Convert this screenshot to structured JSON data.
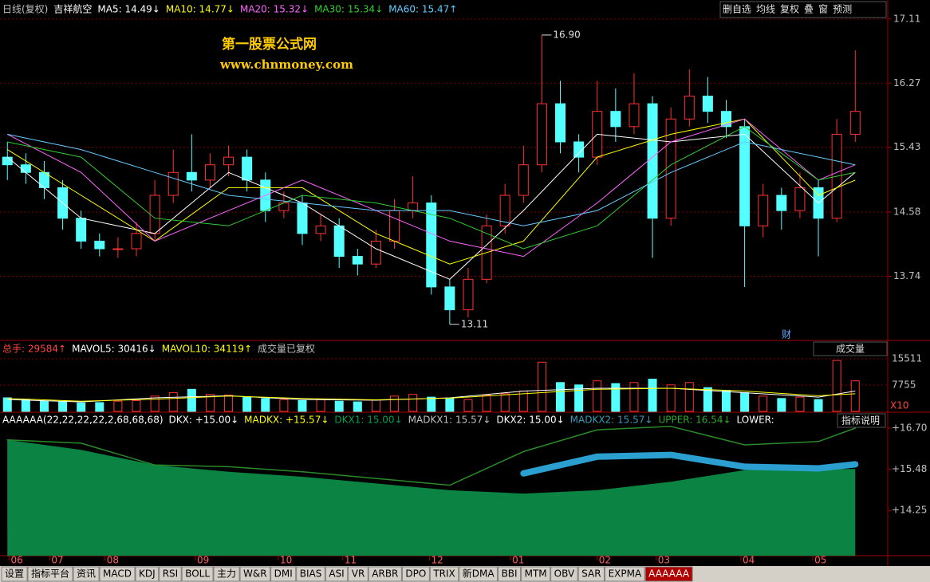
{
  "chart_data": [
    {
      "type": "candlestick",
      "header": [
        {
          "text": "日线(复权)",
          "color": "#c0c0c0"
        },
        {
          "text": "吉祥航空",
          "color": "#ffffff"
        },
        {
          "text": "MA5: 14.49↓",
          "color": "#ffffff"
        },
        {
          "text": "MA10: 14.77↓",
          "color": "#ffff00"
        },
        {
          "text": "MA20: 15.32↓",
          "color": "#ff66ff"
        },
        {
          "text": "MA30: 15.34↓",
          "color": "#33cc33"
        },
        {
          "text": "MA60: 15.47↑",
          "color": "#66ccff"
        }
      ],
      "watermark": [
        "第一股票公式网",
        "www.chnmoney.com"
      ],
      "annotations": [
        "16.90",
        "13.11",
        "财"
      ],
      "up_color": "#ff3232",
      "down_color": "#54ffff",
      "open": [
        15.3,
        15.2,
        15.1,
        14.9,
        14.5,
        14.2,
        14.1,
        14.1,
        14.3,
        14.8,
        15.1,
        15.0,
        15.2,
        15.3,
        15.0,
        14.6,
        14.7,
        14.3,
        14.4,
        14.0,
        13.9,
        14.2,
        14.6,
        14.7,
        13.6,
        13.3,
        13.7,
        14.4,
        14.8,
        15.2,
        16.0,
        15.5,
        15.3,
        15.9,
        15.7,
        16.0,
        14.5,
        15.8,
        16.1,
        15.9,
        15.7,
        14.4,
        14.8,
        14.6,
        14.9,
        14.5,
        15.6
      ],
      "high": [
        15.5,
        15.35,
        15.25,
        15.0,
        14.6,
        14.3,
        14.25,
        14.45,
        15.0,
        15.4,
        15.6,
        15.35,
        15.45,
        15.4,
        15.1,
        14.85,
        14.8,
        14.55,
        14.5,
        14.1,
        14.35,
        14.75,
        15.05,
        14.8,
        13.7,
        13.85,
        14.55,
        14.95,
        15.45,
        16.9,
        16.3,
        15.6,
        16.3,
        16.2,
        16.4,
        16.1,
        15.95,
        16.45,
        16.35,
        16.05,
        15.8,
        14.95,
        14.9,
        15.1,
        15.0,
        15.8,
        16.7
      ],
      "low": [
        15.0,
        14.95,
        14.75,
        14.35,
        14.1,
        14.0,
        13.98,
        14.0,
        14.2,
        14.7,
        14.85,
        14.9,
        15.05,
        14.85,
        14.45,
        14.5,
        14.15,
        14.2,
        13.85,
        13.75,
        13.85,
        14.1,
        14.5,
        13.5,
        13.11,
        13.2,
        13.65,
        14.3,
        14.7,
        15.1,
        15.35,
        15.1,
        15.2,
        15.5,
        15.6,
        13.98,
        14.4,
        15.7,
        15.75,
        15.55,
        13.6,
        14.25,
        14.35,
        14.5,
        14.0,
        14.45,
        15.5
      ],
      "close": [
        15.2,
        15.1,
        14.9,
        14.5,
        14.2,
        14.1,
        14.1,
        14.3,
        14.8,
        15.1,
        15.0,
        15.2,
        15.3,
        15.0,
        14.6,
        14.7,
        14.3,
        14.4,
        14.0,
        13.9,
        14.2,
        14.6,
        14.7,
        13.6,
        13.3,
        13.7,
        14.4,
        14.8,
        15.2,
        16.0,
        15.5,
        15.3,
        15.9,
        15.7,
        16.0,
        14.5,
        15.8,
        16.1,
        15.9,
        15.7,
        14.4,
        14.8,
        14.6,
        14.9,
        14.5,
        15.6,
        15.9
      ],
      "ma": {
        "x": [
          0,
          4,
          8,
          12,
          16,
          20,
          24,
          28,
          32,
          36,
          40,
          44,
          46
        ],
        "series": [
          {
            "color": "#ffffff",
            "values": [
              15.3,
              14.5,
              14.3,
              15.1,
              14.7,
              14.1,
              13.7,
              14.6,
              15.6,
              15.5,
              15.6,
              14.7,
              15.1
            ]
          },
          {
            "color": "#ffff00",
            "values": [
              15.4,
              14.8,
              14.2,
              14.9,
              14.9,
              14.3,
              13.9,
              14.2,
              15.3,
              15.6,
              15.8,
              14.8,
              15.0
            ]
          },
          {
            "color": "#ff66ff",
            "values": [
              15.6,
              15.1,
              14.2,
              14.6,
              15.0,
              14.6,
              14.2,
              14.0,
              14.7,
              15.5,
              15.8,
              15.0,
              15.2
            ]
          },
          {
            "color": "#33cc33",
            "values": [
              15.5,
              15.3,
              14.5,
              14.4,
              14.8,
              14.7,
              14.5,
              14.1,
              14.4,
              15.2,
              15.7,
              15.0,
              15.1
            ]
          },
          {
            "color": "#66ccff",
            "values": [
              15.6,
              15.4,
              15.1,
              14.8,
              14.7,
              14.6,
              14.6,
              14.4,
              14.6,
              15.1,
              15.5,
              15.3,
              15.2
            ]
          }
        ]
      },
      "ylim": [
        12.92,
        17.15
      ],
      "yticks": [
        17.11,
        16.27,
        15.43,
        14.58,
        13.74
      ],
      "xlim": [
        -0.4,
        47.2
      ],
      "xticks": [
        {
          "value": 0.1,
          "label": "06"
        },
        {
          "value": 2.3,
          "label": "07"
        },
        {
          "value": 5.3,
          "label": "08"
        },
        {
          "value": 10.2,
          "label": "09"
        },
        {
          "value": 14.7,
          "label": "10"
        },
        {
          "value": 18.2,
          "label": "11"
        },
        {
          "value": 22.9,
          "label": "12"
        },
        {
          "value": 27.3,
          "label": "01"
        },
        {
          "value": 32.0,
          "label": "02"
        },
        {
          "value": 35.2,
          "label": "03"
        },
        {
          "value": 39.8,
          "label": "04"
        },
        {
          "value": 43.7,
          "label": "05"
        }
      ],
      "grid": true
    },
    {
      "type": "volume",
      "header": [
        {
          "text": "总手: 29584↑",
          "color": "#ff4444"
        },
        {
          "text": "MAVOL5: 30416↓",
          "color": "#ffffff"
        },
        {
          "text": "MAVOL10: 34119↑",
          "color": "#ffff00"
        },
        {
          "text": "成交量已复权",
          "color": "#c0c0c0"
        }
      ],
      "selector": "成交量",
      "values": [
        4000,
        3500,
        3000,
        2800,
        2500,
        2600,
        3000,
        3200,
        4500,
        5500,
        6500,
        5000,
        4800,
        4200,
        3800,
        3500,
        3200,
        3600,
        3000,
        2800,
        3400,
        4500,
        5000,
        4200,
        3800,
        3500,
        4800,
        5200,
        6000,
        14500,
        8500,
        7800,
        9000,
        8200,
        8500,
        9500,
        7800,
        8500,
        7000,
        6200,
        5500,
        4500,
        3800,
        4200,
        3500,
        15000,
        9000
      ],
      "lines": {
        "x": [
          0,
          4,
          8,
          12,
          16,
          20,
          24,
          28,
          32,
          36,
          40,
          44,
          46
        ],
        "series": [
          {
            "color": "#ffffff",
            "values": [
              3500,
              2800,
              4000,
              4600,
              3500,
              3300,
              4000,
              6000,
              6800,
              6800,
              5500,
              4200,
              6000
            ]
          },
          {
            "color": "#ffff00",
            "values": [
              3800,
              3000,
              3600,
              4500,
              3800,
              3400,
              3900,
              5200,
              6500,
              6800,
              6000,
              4600,
              5200
            ]
          }
        ]
      },
      "ylim": [
        0,
        20200
      ],
      "yticks": [
        15511,
        7755
      ],
      "y_unit": "X10"
    },
    {
      "type": "indicator",
      "header": [
        {
          "text": "AAAAAA(22,22,22,22,2,68,68,68)",
          "color": "#ffffff"
        },
        {
          "text": "DKX: +15.00↓",
          "color": "#ffffff"
        },
        {
          "text": "MADKX: +15.57↓",
          "color": "#ffff00"
        },
        {
          "text": "DKX1: 15.00↓",
          "color": "#00a050"
        },
        {
          "text": "MADKX1: 15.57↓",
          "color": "#c0c0c0"
        },
        {
          "text": "DKX2: 15.00↓",
          "color": "#ffffff"
        },
        {
          "text": "MADKX2: 15.57↓",
          "color": "#3a9ab8"
        },
        {
          "text": "UPPER: 16.54↓",
          "color": "#2eaa2e"
        },
        {
          "text": "LOWER:",
          "color": "#ffffff"
        }
      ],
      "help": "指标说明",
      "x": [
        0,
        4,
        8,
        12,
        16,
        20,
        24,
        28,
        32,
        36,
        40,
        44,
        46
      ],
      "series": [
        {
          "style": "area",
          "color": "#0b8443",
          "values": [
            16.35,
            16.05,
            15.6,
            15.4,
            15.25,
            15.05,
            14.85,
            14.75,
            14.85,
            15.1,
            15.45,
            15.48,
            15.48
          ]
        },
        {
          "style": "thick",
          "color": "#2b9fcf",
          "values": [
            null,
            null,
            null,
            null,
            null,
            null,
            null,
            15.35,
            15.85,
            15.9,
            15.55,
            15.5,
            15.62
          ]
        },
        {
          "style": "line",
          "color": "#2a8a2a",
          "values": [
            16.35,
            16.25,
            15.6,
            15.55,
            15.4,
            15.2,
            15.0,
            16.0,
            16.65,
            16.75,
            16.2,
            16.3,
            16.7
          ]
        }
      ],
      "ylim": [
        12.9,
        17.15
      ],
      "yticks": [
        {
          "value": 16.7,
          "label": "+16.70"
        },
        {
          "value": 15.48,
          "label": "+15.48"
        },
        {
          "value": 14.25,
          "label": "+14.25"
        }
      ]
    }
  ],
  "toolbar": [
    "删自选",
    "均线",
    "复权",
    "叠",
    "窗",
    "预测"
  ],
  "tabs": [
    "设置",
    "指标平台",
    "资讯",
    "MACD",
    "KDJ",
    "RSI",
    "BOLL",
    "主力",
    "W&R",
    "DMI",
    "BIAS",
    "ASI",
    "VR",
    "ARBR",
    "DPO",
    "TRIX",
    "新DMA",
    "BBI",
    "MTM",
    "OBV",
    "SAR",
    "EXPMA",
    "AAAAAA"
  ]
}
